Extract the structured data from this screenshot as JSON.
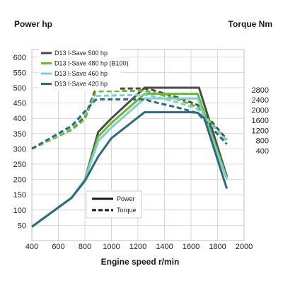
{
  "chart_data": {
    "type": "line",
    "title_left": "Power hp",
    "title_right": "Torque Nm",
    "xlabel": "Engine speed r/min",
    "x_ticks": [
      400,
      600,
      800,
      1000,
      1200,
      1400,
      1600,
      1800,
      2000
    ],
    "xlim": [
      400,
      2000
    ],
    "y_left_ticks": [
      50,
      100,
      150,
      200,
      250,
      300,
      350,
      400,
      450,
      500,
      550,
      600
    ],
    "y_left_lim": [
      0,
      625
    ],
    "y_right_ticks": [
      400,
      800,
      1200,
      1600,
      2000,
      2400,
      2800
    ],
    "y_right_lim": [
      -3130,
      4380
    ],
    "grid": true,
    "legend_position": "top-left",
    "series": [
      {
        "name": "D13 I-Save 500 hp",
        "color": "#4a4a4a",
        "power": [
          [
            400,
            45
          ],
          [
            700,
            140
          ],
          [
            800,
            200
          ],
          [
            900,
            355
          ],
          [
            1000,
            400
          ],
          [
            1250,
            500
          ],
          [
            1300,
            500
          ],
          [
            1600,
            500
          ],
          [
            1660,
            500
          ],
          [
            1870,
            210
          ]
        ],
        "torque": [
          [
            400,
            480
          ],
          [
            700,
            1250
          ],
          [
            800,
            1720
          ],
          [
            880,
            2820
          ],
          [
            900,
            2840
          ],
          [
            1250,
            2850
          ],
          [
            1300,
            2800
          ],
          [
            1500,
            2500
          ],
          [
            1650,
            2200
          ],
          [
            1870,
            840
          ]
        ]
      },
      {
        "name": "D13 I-Save 480 hp (B100)",
        "color": "#6ab82e",
        "power": [
          [
            400,
            45
          ],
          [
            700,
            140
          ],
          [
            800,
            200
          ],
          [
            900,
            340
          ],
          [
            1000,
            385
          ],
          [
            1250,
            480
          ],
          [
            1300,
            480
          ],
          [
            1600,
            480
          ],
          [
            1650,
            480
          ],
          [
            1870,
            205
          ]
        ],
        "torque": [
          [
            400,
            480
          ],
          [
            700,
            1220
          ],
          [
            800,
            1650
          ],
          [
            880,
            2700
          ],
          [
            900,
            2740
          ],
          [
            1250,
            2760
          ],
          [
            1300,
            2700
          ],
          [
            1500,
            2420
          ],
          [
            1650,
            2120
          ],
          [
            1870,
            780
          ]
        ]
      },
      {
        "name": "D13 I-Save 460 hp",
        "color": "#7fd0c8",
        "power": [
          [
            400,
            45
          ],
          [
            700,
            140
          ],
          [
            800,
            200
          ],
          [
            900,
            325
          ],
          [
            1000,
            370
          ],
          [
            1250,
            465
          ],
          [
            1300,
            465
          ],
          [
            1600,
            465
          ],
          [
            1650,
            465
          ],
          [
            1870,
            200
          ]
        ],
        "torque": [
          [
            400,
            480
          ],
          [
            700,
            1320
          ],
          [
            800,
            1850
          ],
          [
            880,
            2550
          ],
          [
            900,
            2560
          ],
          [
            1250,
            2600
          ],
          [
            1300,
            2560
          ],
          [
            1500,
            2300
          ],
          [
            1650,
            2040
          ],
          [
            1870,
            770
          ]
        ]
      },
      {
        "name": "D13 I-Save 420 hp",
        "color": "#2e6a80",
        "power": [
          [
            400,
            45
          ],
          [
            700,
            140
          ],
          [
            800,
            195
          ],
          [
            900,
            275
          ],
          [
            1000,
            335
          ],
          [
            1250,
            420
          ],
          [
            1300,
            420
          ],
          [
            1600,
            420
          ],
          [
            1650,
            418
          ],
          [
            1700,
            400
          ],
          [
            1870,
            170
          ]
        ],
        "torque": [
          [
            400,
            480
          ],
          [
            700,
            1380
          ],
          [
            800,
            1950
          ],
          [
            880,
            2400
          ],
          [
            900,
            2420
          ],
          [
            1250,
            2420
          ],
          [
            1300,
            2340
          ],
          [
            1500,
            2100
          ],
          [
            1650,
            1880
          ],
          [
            1870,
            660
          ]
        ]
      }
    ],
    "line_style_legend": {
      "solid": "Power",
      "dashed": "Torque"
    }
  }
}
